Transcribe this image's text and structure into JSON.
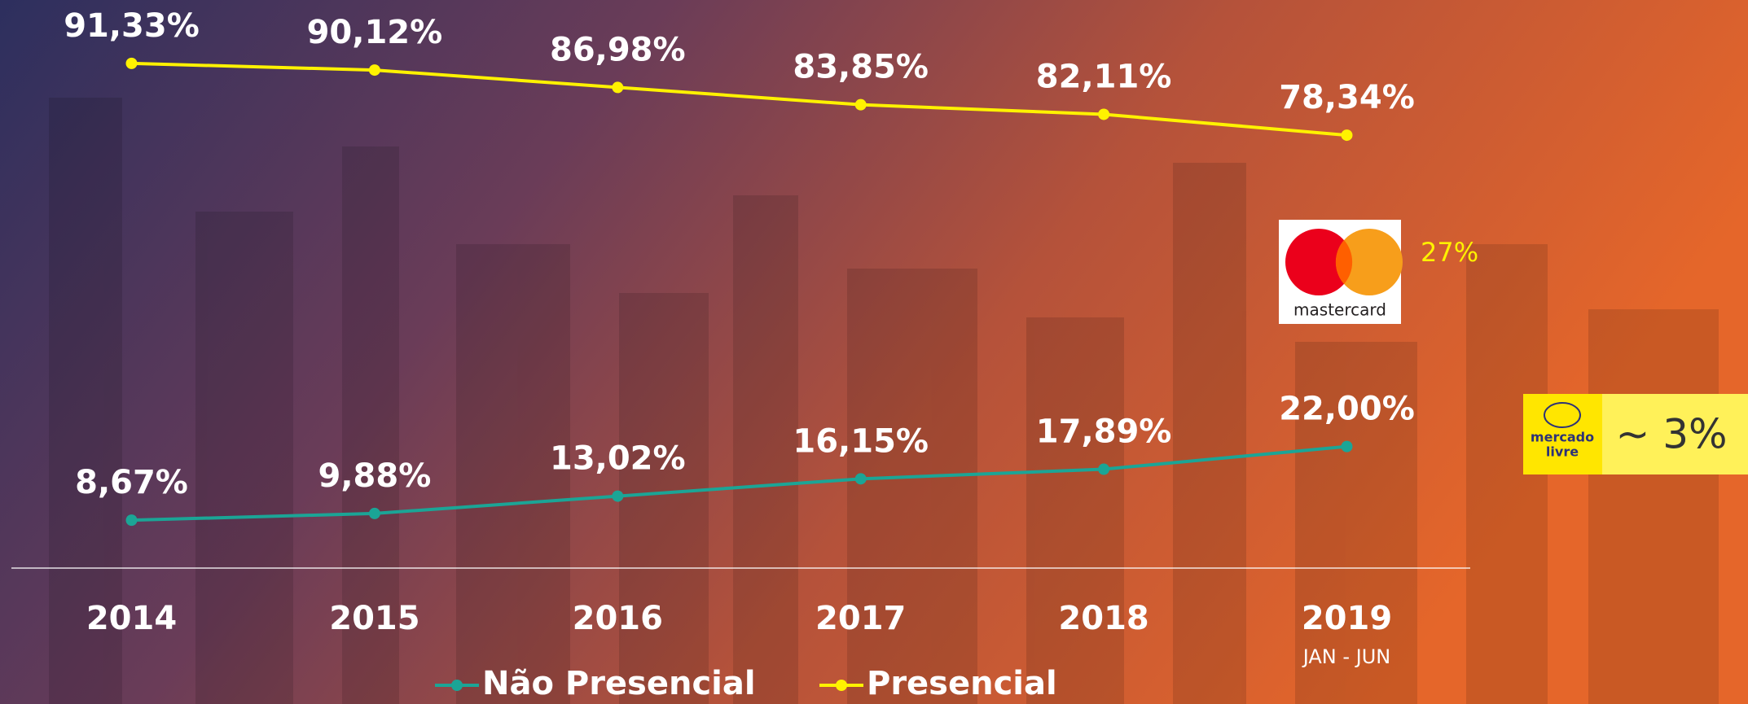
{
  "chart_data": {
    "type": "line",
    "categories": [
      "2014",
      "2015",
      "2016",
      "2017",
      "2018",
      "2019"
    ],
    "series": [
      {
        "name": "Não Presencial",
        "color": "#1ba596",
        "values": [
          8.67,
          9.88,
          13.02,
          16.15,
          17.89,
          22.0
        ],
        "value_labels": [
          "8,67%",
          "9,88%",
          "13,02%",
          "16,15%",
          "17,89%",
          "22,00%"
        ]
      },
      {
        "name": "Presencial",
        "color": "#fff200",
        "values": [
          91.33,
          90.12,
          86.98,
          83.85,
          82.11,
          78.34
        ],
        "value_labels": [
          "91,33%",
          "90,12%",
          "86,98%",
          "83,85%",
          "82,11%",
          "78,34%"
        ]
      }
    ],
    "ylim": [
      0,
      102.8
    ],
    "legend": "bottom",
    "annotations": [
      "JAN - JUN",
      "mastercard",
      "27%",
      "mercado",
      "livre",
      "~ 3%"
    ]
  }
}
